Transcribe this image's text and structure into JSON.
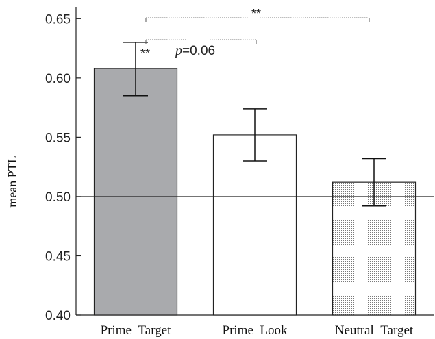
{
  "chart_data": {
    "type": "bar",
    "title": "",
    "xlabel": "",
    "ylabel": "mean PTL",
    "ylim": [
      0.4,
      0.66
    ],
    "yticks": [
      "0.40",
      "0.45",
      "0.50",
      "0.55",
      "0.60",
      "0.65"
    ],
    "reference_line": 0.5,
    "categories": [
      "Prime–Target",
      "Prime–Look",
      "Neutral–Target"
    ],
    "values": [
      0.608,
      0.552,
      0.512
    ],
    "error_low": [
      0.585,
      0.53,
      0.492
    ],
    "error_high": [
      0.63,
      0.574,
      0.532
    ],
    "bar_fills": [
      "#a9aaad",
      "#ffffff",
      "dotted"
    ],
    "annotations": {
      "bar1_significance": "**",
      "comparison_1_2": {
        "p_label": "p",
        "p_value": "=0.06"
      },
      "comparison_1_3": "**"
    },
    "grid": false
  }
}
